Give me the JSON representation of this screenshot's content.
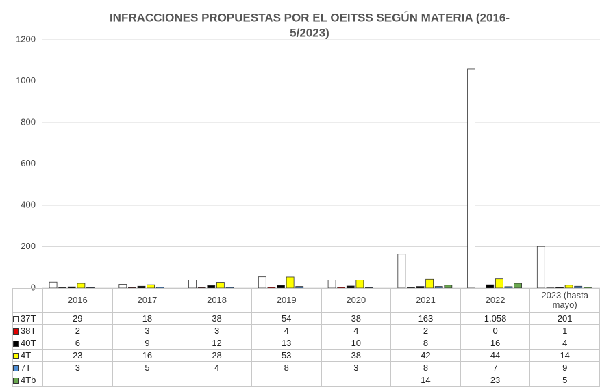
{
  "chart_data": {
    "type": "bar",
    "title": [
      "INFRACCIONES PROPUESTAS POR EL OEITSS SEGÚN MATERIA (2016-",
      "5/2023)"
    ],
    "categories": [
      "2016",
      "2017",
      "2018",
      "2019",
      "2020",
      "2021",
      "2022",
      "2023 (hasta mayo)"
    ],
    "series": [
      {
        "name": "37T",
        "color": "#ffffff",
        "values": [
          29,
          18,
          38,
          54,
          38,
          163,
          1058,
          201
        ],
        "value_labels": [
          "29",
          "18",
          "38",
          "54",
          "38",
          "163",
          "1.058",
          "201"
        ]
      },
      {
        "name": "38T",
        "color": "#e00000",
        "values": [
          2,
          3,
          3,
          4,
          4,
          2,
          0,
          1
        ]
      },
      {
        "name": "40T",
        "color": "#000000",
        "values": [
          6,
          9,
          12,
          13,
          10,
          8,
          16,
          4
        ]
      },
      {
        "name": "4T",
        "color": "#ffff00",
        "values": [
          23,
          16,
          28,
          53,
          38,
          42,
          44,
          14
        ]
      },
      {
        "name": "7T",
        "color": "#4f8fd6",
        "values": [
          3,
          5,
          4,
          8,
          3,
          8,
          7,
          9
        ]
      },
      {
        "name": "4Tb",
        "color": "#6aa84f",
        "values": [
          null,
          null,
          null,
          null,
          null,
          14,
          23,
          5
        ]
      }
    ],
    "ylim": [
      0,
      1200
    ],
    "yticks": [
      0,
      200,
      400,
      600,
      800,
      1000,
      1200
    ],
    "grid": true
  }
}
